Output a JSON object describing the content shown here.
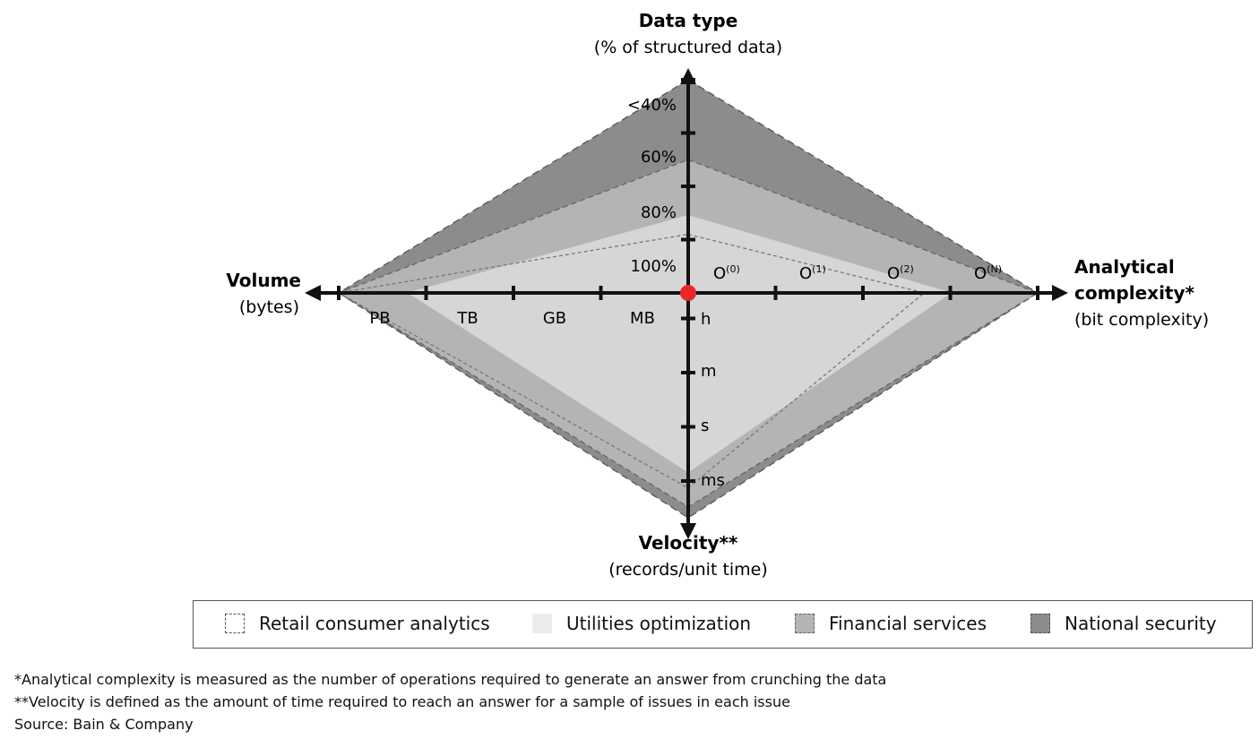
{
  "chart_data": {
    "type": "radar",
    "axes": {
      "top": {
        "title": "Data type",
        "subtitle": "(% of structured data)",
        "ticks": [
          "100%",
          "80%",
          "60%",
          "<40%"
        ]
      },
      "right": {
        "title_line1": "Analytical",
        "title_line2": "complexity*",
        "subtitle": "(bit complexity)",
        "ticks": [
          {
            "base": "O",
            "sup": "(0)"
          },
          {
            "base": "O",
            "sup": "(1)"
          },
          {
            "base": "O",
            "sup": "(2)"
          },
          {
            "base": "O",
            "sup": "(N)"
          }
        ]
      },
      "bottom": {
        "title": "Velocity**",
        "subtitle": "(records/unit time)",
        "ticks": [
          "h",
          "m",
          "s",
          "ms"
        ]
      },
      "left": {
        "title": "Volume",
        "subtitle": "(bytes)",
        "ticks": [
          "MB",
          "GB",
          "TB",
          "PB"
        ]
      }
    },
    "series": [
      {
        "name": "National security",
        "values": {
          "top": 4.0,
          "right": 4.0,
          "bottom": 4.15,
          "left": 4.0
        },
        "color": "#8c8c8c",
        "stroke": "#555555",
        "dash": "8,5"
      },
      {
        "name": "Financial services",
        "values": {
          "top": 2.5,
          "right": 4.0,
          "bottom": 3.95,
          "left": 4.0
        },
        "color": "#b4b4b4",
        "stroke": "#666666",
        "dash": "6,4"
      },
      {
        "name": "Utilities optimization",
        "values": {
          "top": 1.45,
          "right": 3.0,
          "bottom": 3.3,
          "left": 3.2
        },
        "color": "#d6d6d6",
        "stroke": "#d6d6d6",
        "dash": ""
      },
      {
        "name": "Retail consumer analytics",
        "values": {
          "top": 1.1,
          "right": 2.7,
          "bottom": 3.6,
          "left": 4.0
        },
        "color": "none",
        "stroke": "#777777",
        "dash": "4,3"
      }
    ]
  },
  "legend": [
    {
      "label": "Retail consumer analytics",
      "swatch": "dashed-white"
    },
    {
      "label": "Utilities optimization",
      "swatch": "light-gray"
    },
    {
      "label": "Financial services",
      "swatch": "mid-gray"
    },
    {
      "label": "National security",
      "swatch": "dark-gray"
    }
  ],
  "footnotes": [
    "*Analytical complexity is measured as the number of operations required to generate an answer from crunching the data",
    "**Velocity is defined as the amount of time required to reach an answer for a sample of issues in each issue",
    "Source: Bain & Company"
  ],
  "colors": {
    "origin": "#e8272a",
    "axis": "#111111"
  }
}
